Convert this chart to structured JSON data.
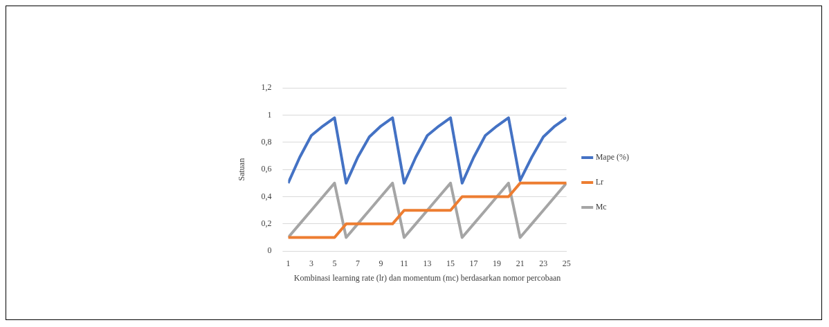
{
  "chart_data": {
    "type": "line",
    "xlabel": "Kombinasi learning rate (lr) dan momentum (mc) berdasarkan nomor percobaan",
    "ylabel": "Satuan",
    "x": [
      1,
      2,
      3,
      4,
      5,
      6,
      7,
      8,
      9,
      10,
      11,
      12,
      13,
      14,
      15,
      16,
      17,
      18,
      19,
      20,
      21,
      22,
      23,
      24,
      25
    ],
    "xlim": [
      1,
      25
    ],
    "xticks": [
      1,
      3,
      5,
      7,
      9,
      11,
      13,
      15,
      17,
      19,
      21,
      23,
      25
    ],
    "series": [
      {
        "name": "Mape (%)",
        "color": "#4472c4",
        "values": [
          0.5,
          0.69,
          0.85,
          0.92,
          0.98,
          0.5,
          0.69,
          0.84,
          0.92,
          0.98,
          0.5,
          0.69,
          0.85,
          0.92,
          0.98,
          0.5,
          0.69,
          0.85,
          0.92,
          0.98,
          0.52,
          0.69,
          0.84,
          0.92,
          0.98
        ]
      },
      {
        "name": "Lr",
        "color": "#ed7d31",
        "values": [
          0.1,
          0.1,
          0.1,
          0.1,
          0.1,
          0.2,
          0.2,
          0.2,
          0.2,
          0.2,
          0.3,
          0.3,
          0.3,
          0.3,
          0.3,
          0.4,
          0.4,
          0.4,
          0.4,
          0.4,
          0.5,
          0.5,
          0.5,
          0.5,
          0.5
        ]
      },
      {
        "name": "Mc",
        "color": "#a5a5a5",
        "values": [
          0.1,
          0.2,
          0.3,
          0.4,
          0.5,
          0.1,
          0.2,
          0.3,
          0.4,
          0.5,
          0.1,
          0.2,
          0.3,
          0.4,
          0.5,
          0.1,
          0.2,
          0.3,
          0.4,
          0.5,
          0.1,
          0.2,
          0.3,
          0.4,
          0.5
        ]
      }
    ],
    "ylim": [
      0,
      1.2
    ],
    "yticks": [
      {
        "value": 0,
        "label": "0"
      },
      {
        "value": 0.2,
        "label": "0,2"
      },
      {
        "value": 0.4,
        "label": "0,4"
      },
      {
        "value": 0.6,
        "label": "0,6"
      },
      {
        "value": 0.8,
        "label": "0,8"
      },
      {
        "value": 1,
        "label": "1"
      },
      {
        "value": 1.2,
        "label": "1,2"
      }
    ],
    "grid": "y",
    "legend": "right",
    "marker": "none"
  }
}
